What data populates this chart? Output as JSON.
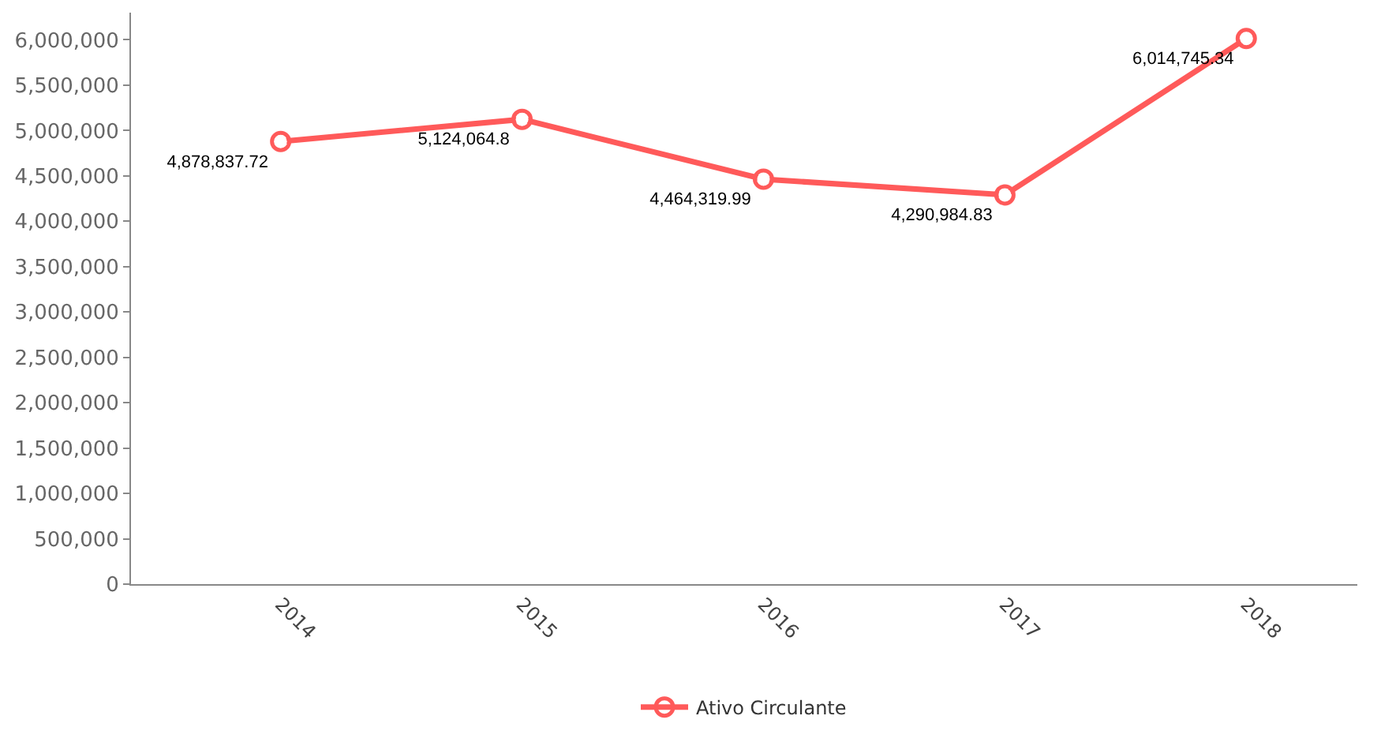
{
  "chart_data": {
    "type": "line",
    "categories": [
      "2014",
      "2015",
      "2016",
      "2017",
      "2018"
    ],
    "series": [
      {
        "name": "Ativo Circulante",
        "color": "#ff5a5a",
        "values": [
          4878837.72,
          5124064.8,
          4464319.99,
          4290984.83,
          6014745.34
        ],
        "value_labels": [
          "4,878,837.72",
          "5,124,064.8",
          "4,464,319.99",
          "4,290,984.83",
          "6,014,745.34"
        ]
      }
    ],
    "ylim": [
      0,
      6300000
    ],
    "yticks": [
      0,
      {
        "value": 500000,
        "label": "500,000"
      },
      {
        "value": 1000000,
        "label": "1,000,000"
      },
      {
        "value": 1500000,
        "label": "1,500,000"
      },
      {
        "value": 2000000,
        "label": "2,000,000"
      },
      {
        "value": 2500000,
        "label": "2,500,000"
      },
      {
        "value": 3000000,
        "label": "3,000,000"
      },
      {
        "value": 3500000,
        "label": "3,500,000"
      },
      {
        "value": 4000000,
        "label": "4,000,000"
      },
      {
        "value": 4500000,
        "label": "4,500,000"
      },
      {
        "value": 5000000,
        "label": "5,000,000"
      },
      {
        "value": 5500000,
        "label": "5,500,000"
      },
      {
        "value": 6000000,
        "label": "6,000,000"
      }
    ],
    "legend": "bottom",
    "marker": "circle",
    "line_style": "solid"
  }
}
